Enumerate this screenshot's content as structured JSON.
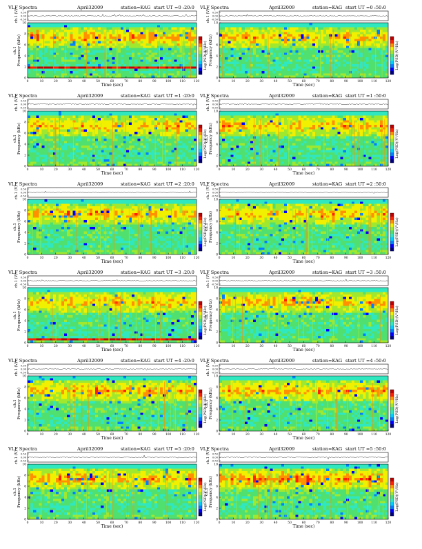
{
  "chart_data": [
    {
      "type": "heatmap",
      "panel": "0:20:0",
      "title_left": "VLF Spectra",
      "date": "April32009",
      "station": "station=KAG",
      "start": "start  UT  =0 :20:0",
      "ylabel_top": "ch.1 (V)",
      "ylabel_spec": "ch.1\nFrequency  (kHz)",
      "xlabel": "Time  (sec)",
      "colorbar_label": "Log(PSD)(V²/Hz)",
      "x_ticks": [
        0,
        10,
        20,
        30,
        40,
        50,
        60,
        70,
        80,
        90,
        100,
        110,
        120
      ],
      "y_ticks": [
        0,
        2,
        4,
        6,
        8,
        10
      ],
      "top_ticks": [
        "0.50",
        "0.00",
        "-0.50"
      ],
      "xlim": [
        0,
        120
      ],
      "ylim": [
        0,
        10
      ],
      "activity": 0.55,
      "hband": 2
    },
    {
      "type": "heatmap",
      "panel": "0:50:0",
      "title_left": "VLF Spectra",
      "date": "April32009",
      "station": "station=KAG",
      "start": "start  UT  =0 :50:0",
      "ylabel_top": "ch.1 (V)",
      "ylabel_spec": "ch.1\nFrequency  (kHz)",
      "xlabel": "Time  (sec)",
      "colorbar_label": "Log(PSD)(V²/Hz)",
      "x_ticks": [
        0,
        10,
        20,
        30,
        40,
        50,
        60,
        70,
        80,
        90,
        100,
        110,
        120
      ],
      "y_ticks": [
        0,
        2,
        4,
        6,
        8,
        10
      ],
      "top_ticks": [
        "0.50",
        "0.00",
        "-0.50"
      ],
      "xlim": [
        0,
        120
      ],
      "ylim": [
        0,
        10
      ],
      "activity": 0.5,
      "hband": 0
    },
    {
      "type": "heatmap",
      "panel": "1:20:0",
      "title_left": "VLF Spectra",
      "date": "April32009",
      "station": "station=KAG",
      "start": "start  UT  =1 :20:0",
      "ylabel_top": "ch.1 (V)",
      "ylabel_spec": "ch.1\nFrequency  (kHz)",
      "xlabel": "Time  (sec)",
      "colorbar_label": "Log(PSD)(V²/Hz)",
      "x_ticks": [
        0,
        10,
        20,
        30,
        40,
        50,
        60,
        70,
        80,
        90,
        100,
        110,
        120
      ],
      "y_ticks": [
        0,
        2,
        4,
        6,
        8,
        10
      ],
      "top_ticks": [
        "0.50",
        "0.00",
        "-0.50"
      ],
      "xlim": [
        0,
        120
      ],
      "ylim": [
        0,
        10
      ],
      "activity": 0.5,
      "hband": 0
    },
    {
      "type": "heatmap",
      "panel": "1:50:0",
      "title_left": "VLF Spectra",
      "date": "April32009",
      "station": "station=KAG",
      "start": "start  UT  =1 :50:0",
      "ylabel_top": "ch.1 (V)",
      "ylabel_spec": "ch.1\nFrequency  (kHz)",
      "xlabel": "Time  (sec)",
      "colorbar_label": "Log(PSD)(V²/Hz)",
      "x_ticks": [
        0,
        10,
        20,
        30,
        40,
        50,
        60,
        70,
        80,
        90,
        100,
        110,
        120
      ],
      "y_ticks": [
        0,
        2,
        4,
        6,
        8,
        10
      ],
      "top_ticks": [
        "0.50",
        "0.00",
        "-0.50"
      ],
      "xlim": [
        0,
        120
      ],
      "ylim": [
        0,
        10
      ],
      "activity": 0.5,
      "hband": 0
    },
    {
      "type": "heatmap",
      "panel": "2:20:0",
      "title_left": "VLF Spectra",
      "date": "April32009",
      "station": "station=KAG",
      "start": "start  UT  =2 :20:0",
      "ylabel_top": "ch.1 (V)",
      "ylabel_spec": "ch.1\nFrequency  (kHz)",
      "xlabel": "Time  (sec)",
      "colorbar_label": "Log(PSD)(V²/Hz)",
      "x_ticks": [
        0,
        10,
        20,
        30,
        40,
        50,
        60,
        70,
        80,
        90,
        100,
        110,
        120
      ],
      "y_ticks": [
        0,
        2,
        4,
        6,
        8,
        10
      ],
      "top_ticks": [
        "0.50",
        "0.00",
        "-0.50"
      ],
      "xlim": [
        0,
        120
      ],
      "ylim": [
        0,
        10
      ],
      "activity": 0.45,
      "hband": 0
    },
    {
      "type": "heatmap",
      "panel": "2:50:0",
      "title_left": "VLF Spectra",
      "date": "April32009",
      "station": "station=KAG",
      "start": "start  UT  =2 :50:0",
      "ylabel_top": "ch.1 (V)",
      "ylabel_spec": "ch.1\nFrequency  (kHz)",
      "xlabel": "Time  (sec)",
      "colorbar_label": "Log(PSD)(V²/Hz)",
      "x_ticks": [
        0,
        10,
        20,
        30,
        40,
        50,
        60,
        70,
        80,
        90,
        100,
        110,
        120
      ],
      "y_ticks": [
        0,
        2,
        4,
        6,
        8,
        10
      ],
      "top_ticks": [
        "0.50",
        "0.00",
        "-0.50"
      ],
      "xlim": [
        0,
        120
      ],
      "ylim": [
        0,
        10
      ],
      "activity": 0.45,
      "hband": 0
    },
    {
      "type": "heatmap",
      "panel": "3:20:0",
      "title_left": "VLF Spectra",
      "date": "April32009",
      "station": "station=KAG",
      "start": "start  UT  =3 :20:0",
      "ylabel_top": "ch.1 (V)",
      "ylabel_spec": "ch.1\nFrequency  (kHz)",
      "xlabel": "Time  (sec)",
      "colorbar_label": "Log(PSD)(V²/Hz)",
      "x_ticks": [
        0,
        10,
        20,
        30,
        40,
        50,
        60,
        70,
        80,
        90,
        100,
        110,
        120
      ],
      "y_ticks": [
        0,
        2,
        4,
        6,
        8,
        10
      ],
      "top_ticks": [
        "0.50",
        "0.00",
        "-0.50"
      ],
      "xlim": [
        0,
        120
      ],
      "ylim": [
        0,
        10
      ],
      "activity": 0.5,
      "hband": 0.5
    },
    {
      "type": "heatmap",
      "panel": "3:50:0",
      "title_left": "VLF Spectra",
      "date": "April32009",
      "station": "station=KAG",
      "start": "start  UT  =3 :50:0",
      "ylabel_top": "ch.1 (V)",
      "ylabel_spec": "ch.1\nFrequency  (kHz)",
      "xlabel": "Time  (sec)",
      "colorbar_label": "Log(PSD)(V²/Hz)",
      "x_ticks": [
        0,
        10,
        20,
        30,
        40,
        50,
        60,
        70,
        80,
        90,
        100,
        110,
        120
      ],
      "y_ticks": [
        0,
        2,
        4,
        6,
        8,
        10
      ],
      "top_ticks": [
        "0.50",
        "0.00",
        "-0.50"
      ],
      "xlim": [
        0,
        120
      ],
      "ylim": [
        0,
        10
      ],
      "activity": 0.5,
      "hband": 0
    },
    {
      "type": "heatmap",
      "panel": "4:20:0",
      "title_left": "VLF Spectra",
      "date": "April32009",
      "station": "station=KAG",
      "start": "start  UT  =4 :20:0",
      "ylabel_top": "ch.1 (V)",
      "ylabel_spec": "ch.1\nFrequency  (kHz)",
      "xlabel": "Time  (sec)",
      "colorbar_label": "Log(PSD)(V²/Hz)",
      "x_ticks": [
        0,
        10,
        20,
        30,
        40,
        50,
        60,
        70,
        80,
        90,
        100,
        110,
        120
      ],
      "y_ticks": [
        0,
        2,
        4,
        6,
        8,
        10
      ],
      "top_ticks": [
        "0.50",
        "0.00",
        "-0.50"
      ],
      "xlim": [
        0,
        120
      ],
      "ylim": [
        0,
        10
      ],
      "activity": 0.5,
      "hband": 0
    },
    {
      "type": "heatmap",
      "panel": "4:50:0",
      "title_left": "VLF Spectra",
      "date": "April32009",
      "station": "station=KAG",
      "start": "start  UT  =4 :50:0",
      "ylabel_top": "ch.1 (V)",
      "ylabel_spec": "ch.1\nFrequency  (kHz)",
      "xlabel": "Time  (sec)",
      "colorbar_label": "Log(PSD)(V²/Hz)",
      "x_ticks": [
        0,
        10,
        20,
        30,
        40,
        50,
        60,
        70,
        80,
        90,
        100,
        110,
        120
      ],
      "y_ticks": [
        0,
        2,
        4,
        6,
        8,
        10
      ],
      "top_ticks": [
        "0.50",
        "0.00",
        "-0.50"
      ],
      "xlim": [
        0,
        120
      ],
      "ylim": [
        0,
        10
      ],
      "activity": 0.7,
      "hband": 0
    },
    {
      "type": "heatmap",
      "panel": "5:20:0",
      "title_left": "VLF Spectra",
      "date": "April32009",
      "station": "station=KAG",
      "start": "start  UT  =5 :20:0",
      "ylabel_top": "ch.1 (V)",
      "ylabel_spec": "ch.1\nFrequency  (kHz)",
      "xlabel": "Time  (sec)",
      "colorbar_label": "Log(PSD)(V²/Hz)",
      "x_ticks": [
        0,
        10,
        20,
        30,
        40,
        50,
        60,
        70,
        80,
        90,
        100,
        110,
        120
      ],
      "y_ticks": [
        0,
        2,
        4,
        6,
        8,
        10
      ],
      "top_ticks": [
        "0.50",
        "0.00",
        "-0.50"
      ],
      "xlim": [
        0,
        120
      ],
      "ylim": [
        0,
        10
      ],
      "activity": 0.65,
      "hband": 0
    },
    {
      "type": "heatmap",
      "panel": "5:50:0",
      "title_left": "VLF Spectra",
      "date": "April32009",
      "station": "station=KAG",
      "start": "start  UT  =5 :50:0",
      "ylabel_top": "ch.1 (V)",
      "ylabel_spec": "ch.1\nFrequency  (kHz)",
      "xlabel": "Time  (sec)",
      "colorbar_label": "Log(PSD)(V²/Hz)",
      "x_ticks": [
        0,
        10,
        20,
        30,
        40,
        50,
        60,
        70,
        80,
        90,
        100,
        110,
        120
      ],
      "y_ticks": [
        0,
        2,
        4,
        6,
        8,
        10
      ],
      "top_ticks": [
        "0.50",
        "0.00",
        "-0.50"
      ],
      "xlim": [
        0,
        120
      ],
      "ylim": [
        0,
        10
      ],
      "activity": 0.85,
      "hband": 0
    }
  ],
  "colors": {
    "colormap": [
      "#00007f",
      "#0000ff",
      "#0080ff",
      "#00d0ff",
      "#30e8c0",
      "#50e070",
      "#a0e830",
      "#f0f000",
      "#ff9000",
      "#ff2000",
      "#c00000"
    ],
    "background": "#30e8c0"
  }
}
